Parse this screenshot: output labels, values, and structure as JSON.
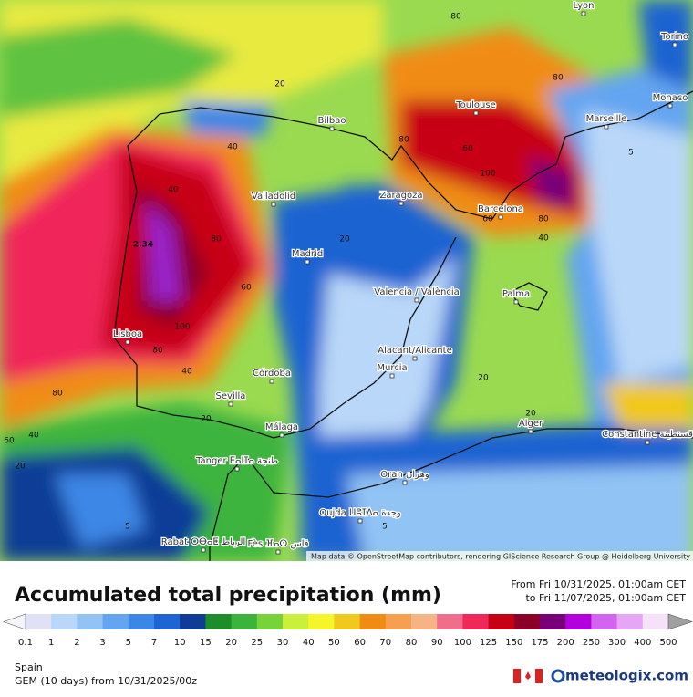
{
  "map": {
    "cities": [
      "Lyon",
      "Torino",
      "Monaco",
      "Marseille",
      "Toulouse",
      "Bilbao",
      "Valladolid",
      "Zaragoza",
      "Barcelona",
      "Madrid",
      "Palma",
      "Valencia / València",
      "Lisboa",
      "Alacant/Alicante",
      "Murcia",
      "Córdoba",
      "Sevilla",
      "Málaga",
      "Tanger ⵟⴰⵏⵊⴰ طنجة",
      "Rabat ⵔⴱⴰⵟ الرباط",
      "Fès ⴼⴰⵙ فاس",
      "Oujda ⵡⵓⵊⴷⴰ وجدة",
      "Oran وهران",
      "Alger",
      "Constantine قسنطينة"
    ],
    "contour_labels": [
      "80",
      "20",
      "40",
      "40",
      "80",
      "2.34",
      "60",
      "100",
      "80",
      "40",
      "80",
      "40",
      "60",
      "20",
      "20",
      "20",
      "80",
      "60",
      "100",
      "80",
      "80",
      "40",
      "60",
      "5",
      "20",
      "20",
      "5",
      "5"
    ],
    "attribution": "Map data © OpenStreetMap contributors, rendering GIScience Research Group @ Heidelberg University"
  },
  "legend": {
    "title": "Accumulated total precipitation (mm)",
    "from": "From Fri 10/31/2025, 01:00am CET",
    "to": "to Fri 11/07/2025, 01:00am CET",
    "steps": [
      {
        "value": 0.1,
        "color": "#e1e1f5"
      },
      {
        "value": 1,
        "color": "#b9d7f8"
      },
      {
        "value": 2,
        "color": "#91c3f5"
      },
      {
        "value": 3,
        "color": "#64a5f0"
      },
      {
        "value": 5,
        "color": "#3c87e6"
      },
      {
        "value": 7,
        "color": "#1e64d2"
      },
      {
        "value": 10,
        "color": "#0f3c96"
      },
      {
        "value": 15,
        "color": "#1e8c28"
      },
      {
        "value": 20,
        "color": "#3cb43c"
      },
      {
        "value": 25,
        "color": "#78d23c"
      },
      {
        "value": 30,
        "color": "#c8f03c"
      },
      {
        "value": 40,
        "color": "#f5f528"
      },
      {
        "value": 50,
        "color": "#f0c81e"
      },
      {
        "value": 60,
        "color": "#f08c14"
      },
      {
        "value": 70,
        "color": "#f5a050"
      },
      {
        "value": 80,
        "color": "#f5b482"
      },
      {
        "value": 90,
        "color": "#f06e8c"
      },
      {
        "value": 100,
        "color": "#f0285a"
      },
      {
        "value": 125,
        "color": "#c80014"
      },
      {
        "value": 150,
        "color": "#8c0028"
      },
      {
        "value": 175,
        "color": "#780078"
      },
      {
        "value": 200,
        "color": "#b400dc"
      },
      {
        "value": 250,
        "color": "#d264f0"
      },
      {
        "value": 300,
        "color": "#e6a5f5"
      },
      {
        "value": 400,
        "color": "#f5e1f8"
      },
      {
        "value": 500,
        "color": "#a0a0a0"
      }
    ]
  },
  "footer": {
    "region": "Spain",
    "model": "GEM (10 days) from 10/31/2025/00z",
    "brand": "meteologix.com"
  }
}
